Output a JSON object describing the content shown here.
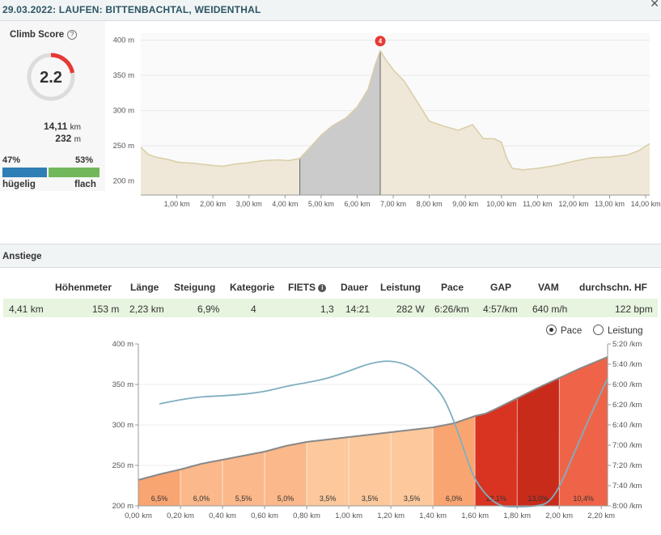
{
  "header": {
    "title": "29.03.2022: LAUFEN: BITTENBACHTAL, WEIDENTHAL"
  },
  "score": {
    "label": "Climb Score",
    "value": "2.2",
    "distance_value": "14,11",
    "distance_unit": "km",
    "elevation_value": "232",
    "elevation_unit": "m",
    "hilly_pct": "47%",
    "flat_pct": "53%",
    "hilly_label": "hügelig",
    "flat_label": "flach"
  },
  "section": {
    "title": "Anstiege"
  },
  "table": {
    "headers": [
      "Höhenmeter",
      "Länge",
      "Steigung",
      "Kategorie",
      "FIETS",
      "Dauer",
      "Leistung",
      "Pace",
      "GAP",
      "VAM",
      "durchschn. HF"
    ],
    "row": [
      "4,41 km",
      "153 m",
      "2,23 km",
      "6,9%",
      "4",
      "1,3",
      "14:21",
      "282 W",
      "6:26/km",
      "4:57/km",
      "640 m/h",
      "122 bpm"
    ]
  },
  "toggle": {
    "pace": "Pace",
    "power": "Leistung",
    "selected": "Pace"
  },
  "colors": {
    "profile_fill": "#efe8d8",
    "profile_line": "#d9cda6",
    "climb_fill": "#cbcbcb",
    "marker": "#e53935",
    "pace_line": "#7fafc0",
    "grade_low": "#fbb88a",
    "grade_mid": "#f9a571",
    "grade_high": "#d93322",
    "grade_top": "#c92b1b",
    "grade_10": "#ef6448"
  },
  "chart_data": [
    {
      "type": "area",
      "title": "",
      "xlabel": "",
      "ylabel": "",
      "xlim": [
        0,
        14.11
      ],
      "ylim": [
        180,
        410
      ],
      "y_ticks": [
        "200 m",
        "250 m",
        "300 m",
        "350 m",
        "400 m"
      ],
      "x_ticks": [
        "1,00 km",
        "2,00 km",
        "3,00 km",
        "4,00 km",
        "5,00 km",
        "6,00 km",
        "7,00 km",
        "8,00 km",
        "9,00 km",
        "10,00 km",
        "11,00 km",
        "12,00 km",
        "13,00 km",
        "14,00 km"
      ],
      "climb_marker": {
        "label": "4",
        "x": 6.64,
        "y": 385
      },
      "climb_range": [
        4.41,
        6.64
      ],
      "x": [
        0,
        0.2,
        0.4,
        0.6,
        0.8,
        1.0,
        1.2,
        1.5,
        2.0,
        2.3,
        2.6,
        3.0,
        3.4,
        3.8,
        4.1,
        4.41,
        4.7,
        5.0,
        5.3,
        5.7,
        6.0,
        6.3,
        6.5,
        6.64,
        6.8,
        7.0,
        7.3,
        7.6,
        8.0,
        8.4,
        8.8,
        9.2,
        9.5,
        9.8,
        10.0,
        10.15,
        10.3,
        10.6,
        11.0,
        11.5,
        12.0,
        12.5,
        13.0,
        13.5,
        13.8,
        14.11
      ],
      "y": [
        248,
        238,
        234,
        232,
        230,
        227,
        226,
        225,
        222,
        221,
        224,
        226,
        229,
        230,
        229,
        232,
        248,
        265,
        278,
        290,
        305,
        330,
        365,
        385,
        372,
        358,
        342,
        318,
        285,
        278,
        272,
        280,
        260,
        260,
        255,
        232,
        218,
        216,
        218,
        222,
        228,
        233,
        234,
        237,
        243,
        253
      ]
    },
    {
      "type": "area",
      "title": "",
      "xlabel": "",
      "ylabel": "",
      "xlim": [
        0,
        2.23
      ],
      "ylim": [
        200,
        400
      ],
      "y_ticks": [
        "200 m",
        "250 m",
        "300 m",
        "350 m",
        "400 m"
      ],
      "y2_ticks": [
        "5:20 /km",
        "5:40 /km",
        "6:00 /km",
        "6:20 /km",
        "6:40 /km",
        "7:00 /km",
        "7:20 /km",
        "7:40 /km",
        "8:00 /km"
      ],
      "x_ticks": [
        "0,00 km",
        "0,20 km",
        "0,40 km",
        "0,60 km",
        "0,80 km",
        "1,00 km",
        "1,20 km",
        "1,40 km",
        "1,60 km",
        "1,80 km",
        "2,00 km",
        "2,20 km"
      ],
      "segments": [
        {
          "from": 0.0,
          "to": 0.2,
          "label": "6,5%",
          "color": "#f9a571"
        },
        {
          "from": 0.2,
          "to": 0.4,
          "label": "6,0%",
          "color": "#fbb88a"
        },
        {
          "from": 0.4,
          "to": 0.6,
          "label": "5,5%",
          "color": "#fbb88a"
        },
        {
          "from": 0.6,
          "to": 0.8,
          "label": "5,0%",
          "color": "#fbb88a"
        },
        {
          "from": 0.8,
          "to": 1.0,
          "label": "3,5%",
          "color": "#fcc89c"
        },
        {
          "from": 1.0,
          "to": 1.2,
          "label": "3,5%",
          "color": "#fcc89c"
        },
        {
          "from": 1.2,
          "to": 1.4,
          "label": "3,5%",
          "color": "#fcc89c"
        },
        {
          "from": 1.4,
          "to": 1.6,
          "label": "6,0%",
          "color": "#f9a571"
        },
        {
          "from": 1.6,
          "to": 1.8,
          "label": "12,1%",
          "color": "#d93322"
        },
        {
          "from": 1.8,
          "to": 2.0,
          "label": "13,0%",
          "color": "#c92b1b"
        },
        {
          "from": 2.0,
          "to": 2.23,
          "label": "10,4%",
          "color": "#ef6448"
        }
      ],
      "elevation_x": [
        0,
        0.1,
        0.2,
        0.3,
        0.4,
        0.5,
        0.6,
        0.7,
        0.8,
        0.9,
        1.0,
        1.1,
        1.2,
        1.3,
        1.4,
        1.5,
        1.6,
        1.65,
        1.7,
        1.8,
        1.9,
        2.0,
        2.1,
        2.23
      ],
      "elevation_y": [
        232,
        239,
        245,
        252,
        257,
        262,
        267,
        274,
        279,
        282,
        285,
        288,
        291,
        294,
        297,
        302,
        311,
        314,
        320,
        333,
        346,
        358,
        370,
        384
      ],
      "pace_x": [
        0.1,
        0.2,
        0.3,
        0.45,
        0.6,
        0.7,
        0.8,
        0.9,
        1.0,
        1.1,
        1.2,
        1.3,
        1.4,
        1.45,
        1.5,
        1.55,
        1.6,
        1.7,
        1.8,
        1.9,
        1.95,
        2.0,
        2.05,
        2.1,
        2.15,
        2.23
      ],
      "pace_min_per_km": [
        6.32,
        6.25,
        6.2,
        6.18,
        6.12,
        6.03,
        5.97,
        5.9,
        5.78,
        5.65,
        5.6,
        5.7,
        6.0,
        6.2,
        6.6,
        7.1,
        7.6,
        8.0,
        8.02,
        8.0,
        7.95,
        7.7,
        7.3,
        6.9,
        6.5,
        5.9
      ]
    }
  ]
}
